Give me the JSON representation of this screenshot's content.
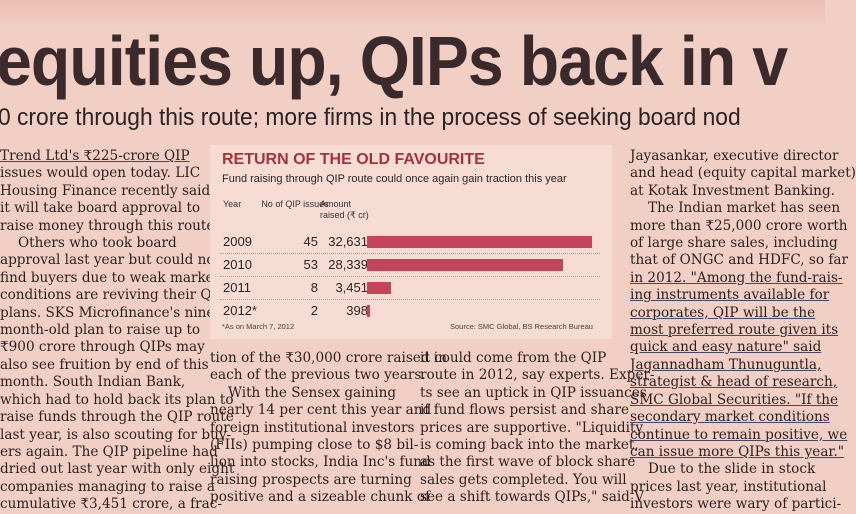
{
  "headline": "equities up, QIPs back in v",
  "subhead": "0 crore through this route; more firms in the process of seeking board nod",
  "column1": [
    "Trend Ltd's ₹225-crore QIP",
    "issues would open today. LIC",
    "Housing Finance recently said",
    "it will take board approval to",
    "raise money through this route.",
    "Others who took board",
    "approval last year but could not",
    "find buyers due to weak market",
    "conditions are reviving their QIP",
    "plans. SKS Microfinance's nine-",
    "month-old plan to raise up to",
    "₹900 crore through QIPs may",
    "also see fruition by end of this",
    "month. South Indian Bank,",
    "which had to hold back its plan to",
    "raise funds through the QIP route",
    "last year, is also scouting for buy-",
    "ers again. The QIP pipeline had",
    "dried out last year with only eight",
    "companies managing to raise a",
    "cumulative ₹3,451 crore, a frac-"
  ],
  "column2": [
    "tion of the ₹30,000 crore raised in",
    "each of the previous two years.",
    "With the Sensex gaining",
    "nearly 14 per cent this year and",
    "foreign institutional investors",
    "(FIIs) pumping close to $8 bil-",
    "lion into stocks, India Inc's fund",
    "raising prospects are turning",
    "positive and a sizeable chunk of"
  ],
  "column3": [
    "it could come from the QIP",
    "route in 2012, say experts. Exper-",
    "ts see an uptick in QIP issuances",
    "if fund flows persist and share",
    "prices are supportive. \"Liquidity",
    "is coming back into the market,",
    "as the first wave of block share",
    "sales gets completed. You will",
    "see a shift towards QIPs,\" said V"
  ],
  "column4": [
    "Jayasankar, executive director",
    "and head (equity capital market)",
    "at Kotak Investment Banking.",
    "The Indian market has seen",
    "more than ₹25,000 crore worth",
    "of large share sales, including",
    "that of ONGC and HDFC, so far",
    "in 2012. \"Among the fund-rais-",
    "ing instruments available for",
    "corporates, QIP will be the",
    "most preferred route given its",
    "quick and easy nature\" said",
    "Jagannadham Thunuguntla,",
    "strategist & head of research,",
    "SMC Global Securities. \"If the",
    "secondary market conditions",
    "continue to remain positive, we",
    "can issue more QIPs this year.\"",
    "Due to the slide in stock",
    "prices last year, institutional",
    "investors were wary of partici-"
  ],
  "infobox": {
    "title": "RETURN OF THE OLD FAVOURITE",
    "subtitle": "Fund raising through QIP route could once again gain traction this year",
    "col_year": "Year",
    "col_issues": "No of QIP issues",
    "col_amount": "Amount raised (₹ cr)",
    "footnote": "*As on March 7, 2012",
    "source": "Source: SMC Global, BS Research Bureau",
    "bar_color": "#c4445a"
  },
  "chart_data": {
    "type": "bar",
    "title": "RETURN OF THE OLD FAVOURITE",
    "subtitle": "Fund raising through QIP route could once again gain traction this year",
    "categories": [
      "2009",
      "2010",
      "2011",
      "2012*"
    ],
    "issues": [
      "45",
      "53",
      "8",
      "2"
    ],
    "amount_labels": [
      "32,631",
      "28,339",
      "3,451",
      "398"
    ],
    "values": [
      32631,
      28339,
      3451,
      398
    ],
    "xlim": [
      0,
      33000
    ]
  }
}
